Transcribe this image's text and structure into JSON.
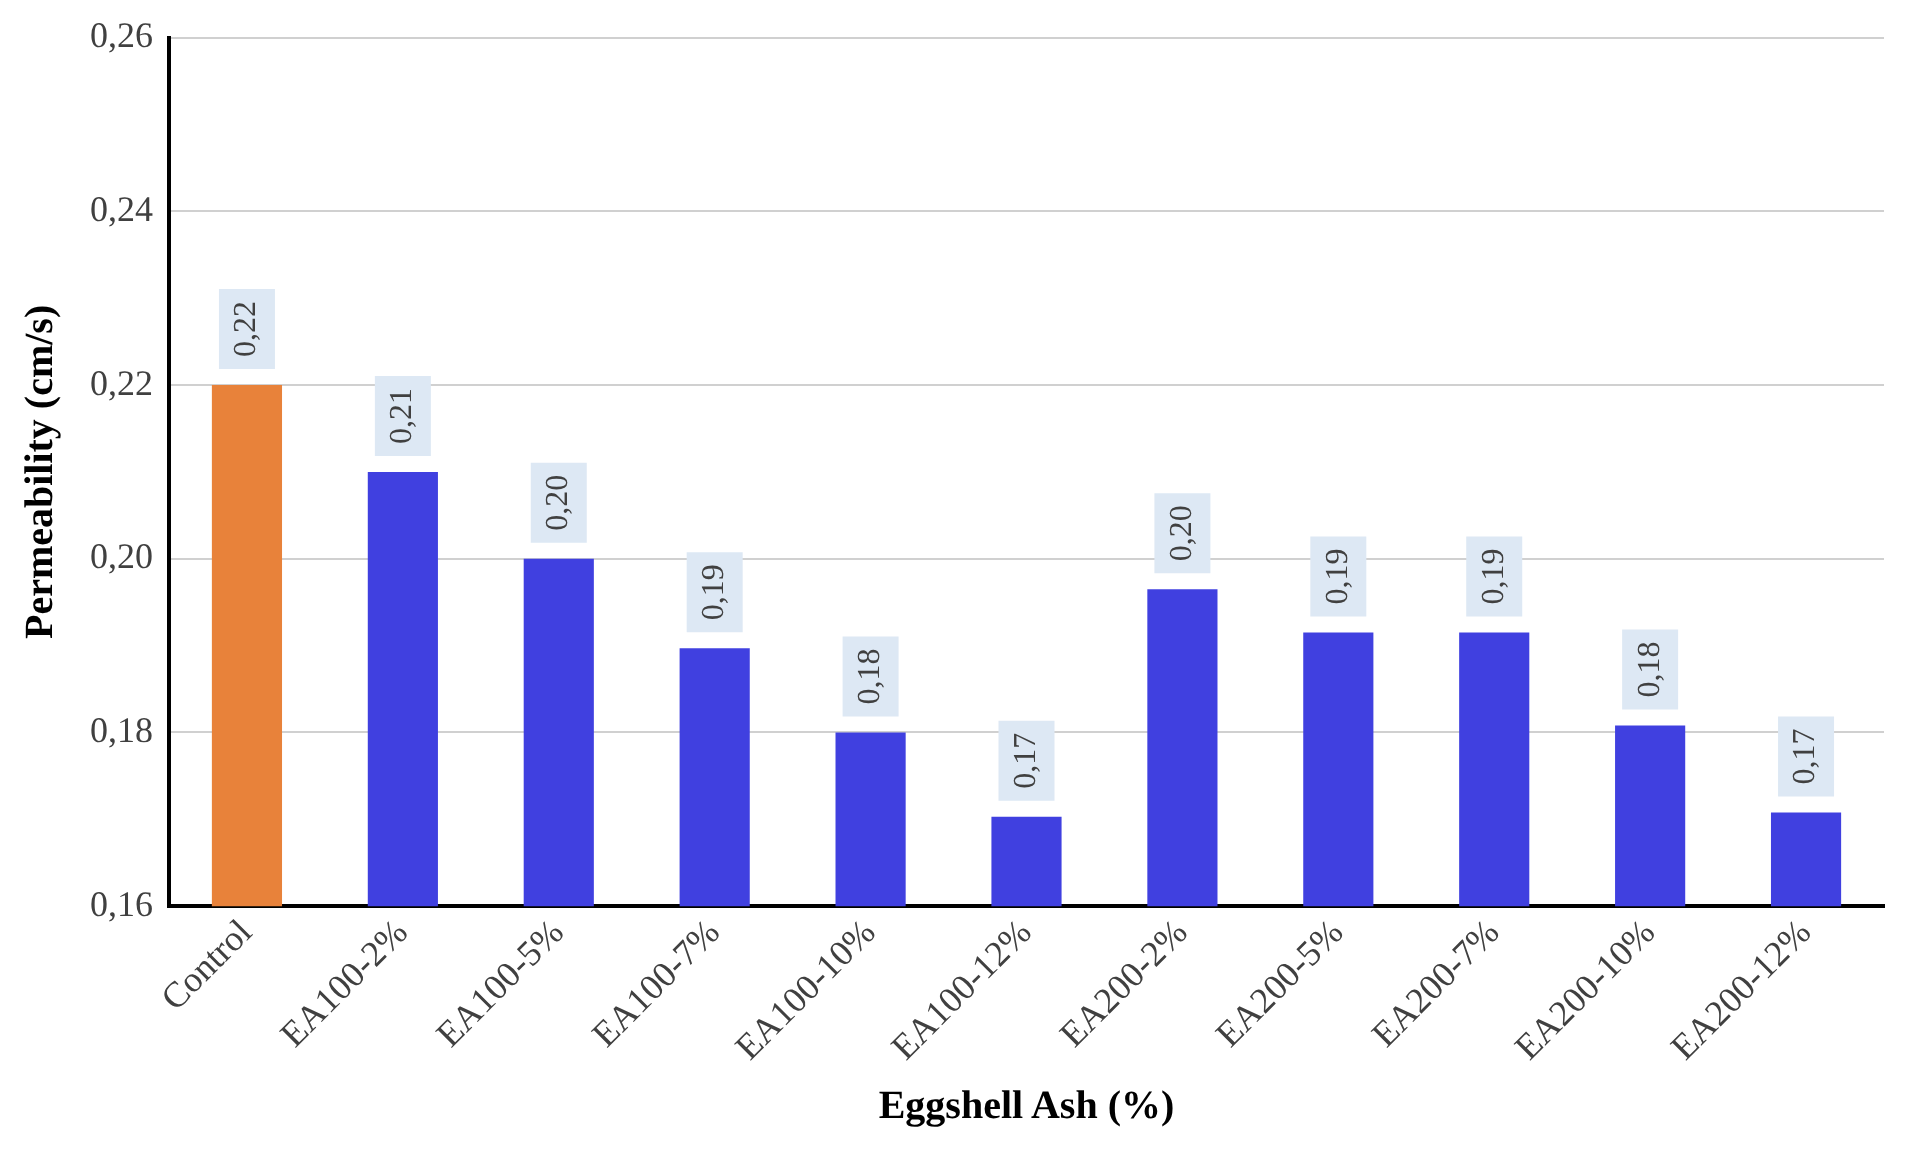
{
  "chart_data": {
    "type": "bar",
    "xlabel": "Eggshell Ash (%)",
    "ylabel": "Permeability (cm/s)",
    "categories": [
      "Control",
      "EA100-2%",
      "EA100-5%",
      "EA100-7%",
      "EA100-10%",
      "EA100-12%",
      "EA200-2%",
      "EA200-5%",
      "EA200-7%",
      "EA200-10%",
      "EA200-12%"
    ],
    "values": [
      0.22,
      0.21,
      0.2,
      0.1897,
      0.18,
      0.1703,
      0.1965,
      0.1915,
      0.1915,
      0.1808,
      0.1708
    ],
    "value_labels": [
      "0,22",
      "0,21",
      "0,20",
      "0,19",
      "0,18",
      "0,17",
      "0,20",
      "0,19",
      "0,19",
      "0,18",
      "0,17"
    ],
    "colors": [
      "#e8823a",
      "#4040e0",
      "#4040e0",
      "#4040e0",
      "#4040e0",
      "#4040e0",
      "#4040e0",
      "#4040e0",
      "#4040e0",
      "#4040e0",
      "#4040e0"
    ],
    "ylim": [
      0.16,
      0.26
    ],
    "yticks": [
      {
        "value": 0.16,
        "label": "0,16"
      },
      {
        "value": 0.18,
        "label": "0,18"
      },
      {
        "value": 0.2,
        "label": "0,20"
      },
      {
        "value": 0.22,
        "label": "0,22"
      },
      {
        "value": 0.24,
        "label": "0,24"
      },
      {
        "value": 0.26,
        "label": "0,26"
      }
    ],
    "grid": "y",
    "legend": false
  }
}
